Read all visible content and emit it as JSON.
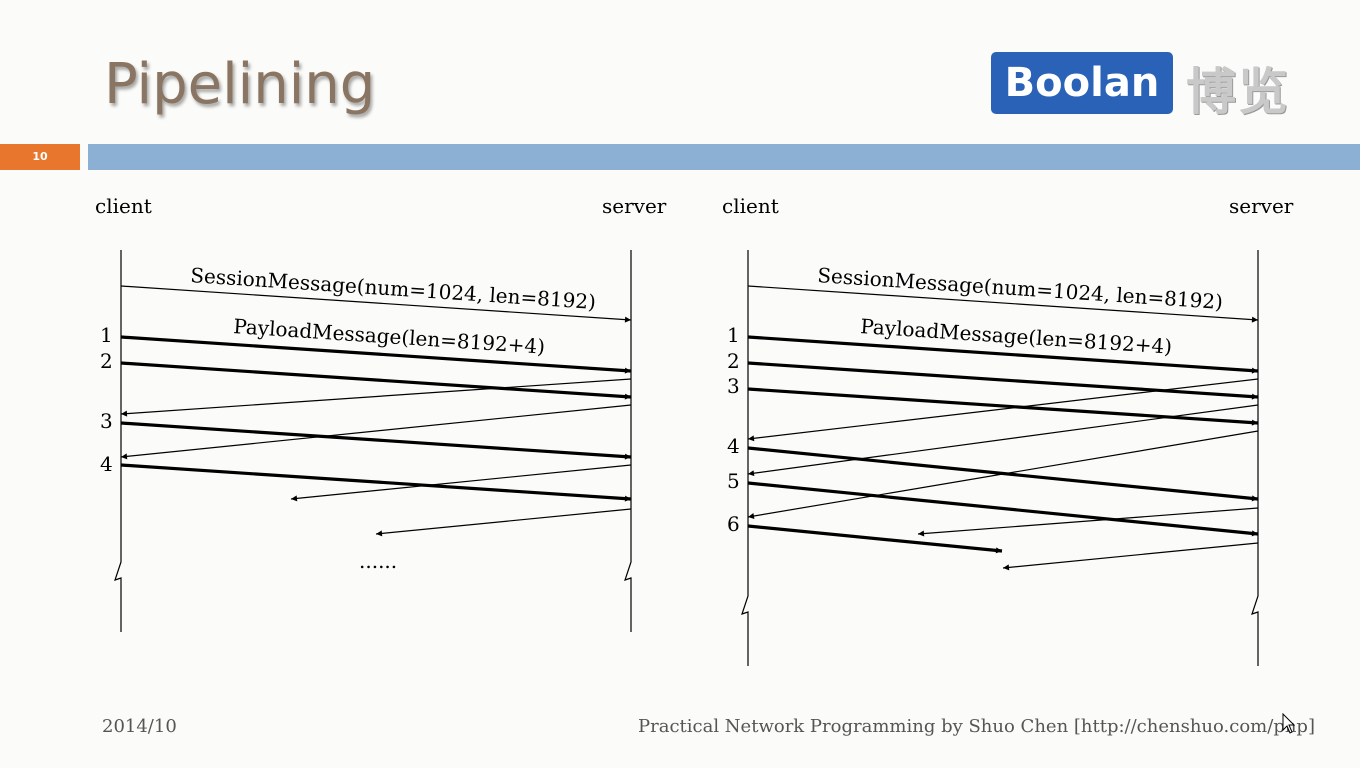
{
  "header": {
    "title": "Pipelining",
    "logo_text": "Boolan",
    "logo_cjk": "博览",
    "slide_number": "10"
  },
  "footer": {
    "date": "2014/10",
    "credit": "Practical Network Programming by Shuo Chen [http://chenshuo.com/pnp]"
  },
  "diagrams": [
    {
      "client_label": "client",
      "server_label": "server",
      "session_message": "SessionMessage(num=1024, len=8192)",
      "payload_message": "PayloadMessage(len=8192+4)",
      "numbers": [
        "1",
        "2",
        "3",
        "4"
      ],
      "ellipsis": "......"
    },
    {
      "client_label": "client",
      "server_label": "server",
      "session_message": "SessionMessage(num=1024, len=8192)",
      "payload_message": "PayloadMessage(len=8192+4)",
      "numbers": [
        "1",
        "2",
        "3",
        "4",
        "5",
        "6"
      ]
    }
  ],
  "colors": {
    "accent_orange": "#e8762c",
    "accent_blue": "#8bb0d3",
    "logo_blue": "#2a62b8"
  }
}
